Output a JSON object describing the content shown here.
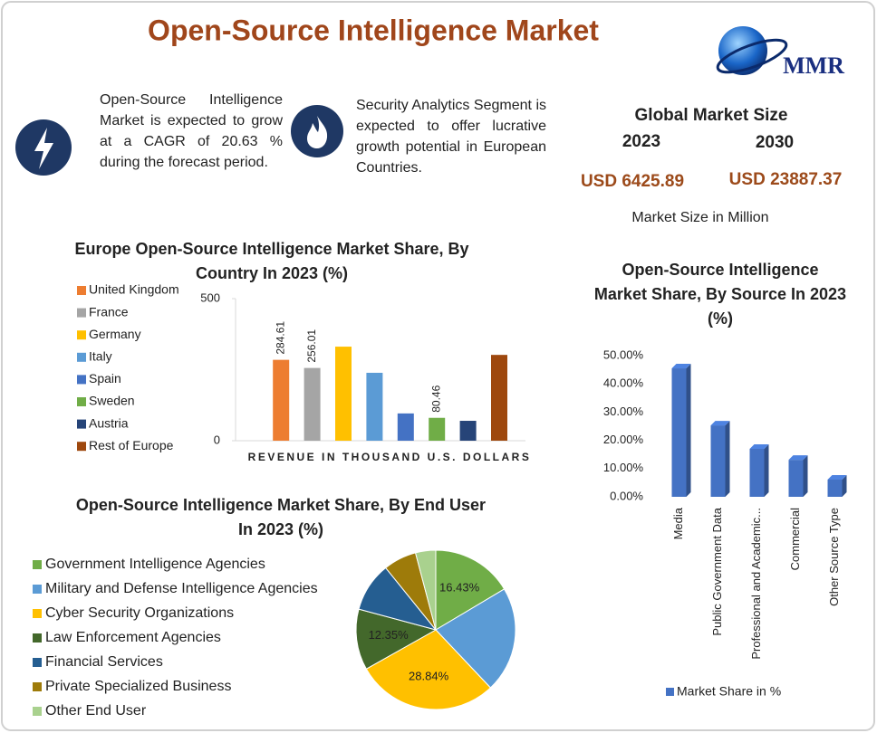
{
  "header": {
    "title": "Open-Source Intelligence Market",
    "logo": "MMR"
  },
  "highlights": [
    {
      "text": "Open-Source Intelligence Market is expected to grow at a CAGR of 20.63 % during the forecast period."
    },
    {
      "text": "Security Analytics Segment is expected to offer lucrative growth potential in European Countries."
    }
  ],
  "market_size": {
    "title": "Global Market Size",
    "years": [
      "2023",
      "2030"
    ],
    "values": [
      "USD 6425.89",
      "USD 23887.37"
    ],
    "note": "Market Size in Million"
  },
  "chart_data": [
    {
      "type": "bar",
      "title": "Europe Open-Source Intelligence Market Share, By Country In 2023 (%)",
      "x_label": "REVENUE IN THOUSAND U.S. DOLLARS",
      "categories": [
        "United Kingdom",
        "France",
        "Germany",
        "Italy",
        "Spain",
        "Sweden",
        "Austria",
        "Rest of Europe"
      ],
      "values": [
        284.61,
        256.01,
        331,
        239,
        96,
        80.46,
        70,
        302
      ],
      "value_labels": [
        "284.61",
        "256.01",
        null,
        null,
        null,
        "80.46",
        null,
        null
      ],
      "colors": [
        "#ed7d31",
        "#a5a5a5",
        "#ffc000",
        "#5b9bd5",
        "#4472c4",
        "#70ad47",
        "#264478",
        "#9e480e"
      ],
      "ylim": [
        0,
        500
      ],
      "yticks": [
        0,
        500
      ]
    },
    {
      "type": "bar",
      "title": "Open-Source Intelligence Market Share, By Source In 2023 (%)",
      "categories": [
        "Media",
        "Public Government Data",
        "Professional and Academic...",
        "Commercial",
        "Other Source Type"
      ],
      "series": [
        {
          "name": "Market Share in %",
          "color": "#4472c4",
          "values": [
            45.5,
            25.3,
            17,
            13.1,
            6.1
          ]
        }
      ],
      "ylim": [
        0,
        50
      ],
      "yticks": [
        {
          "value": 0,
          "label": "0.00%"
        },
        {
          "value": 10,
          "label": "10.00%"
        },
        {
          "value": 20,
          "label": "20.00%"
        },
        {
          "value": 30,
          "label": "30.00%"
        },
        {
          "value": 40,
          "label": "40.00%"
        },
        {
          "value": 50,
          "label": "50.00%"
        }
      ]
    },
    {
      "type": "pie",
      "title": "Open-Source Intelligence Market Share, By End User In 2023 (%)",
      "categories": [
        "Government Intelligence Agencies",
        "Military and Defense Intelligence Agencies",
        "Cyber Security Organizations",
        "Law Enforcement Agencies",
        "Financial Services",
        "Private Specialized Business",
        "Other End User"
      ],
      "values": [
        16.43,
        21.5,
        28.84,
        12.35,
        10,
        6.7,
        4.1
      ],
      "value_labels": [
        "16.43%",
        null,
        "28.84%",
        "12.35%",
        null,
        null,
        null
      ],
      "colors": [
        "#70ad47",
        "#5b9bd5",
        "#ffc000",
        "#43682b",
        "#255e91",
        "#9e7b0a",
        "#a9d18e"
      ]
    }
  ]
}
